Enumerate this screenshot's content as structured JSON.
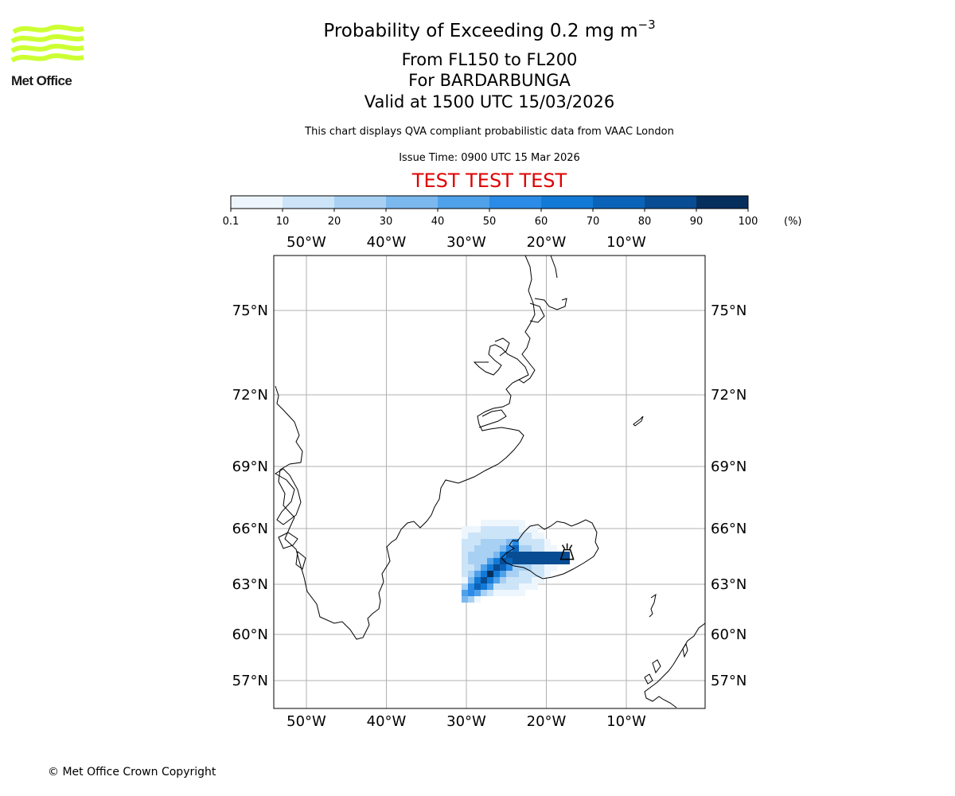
{
  "logo": {
    "text": "Met Office",
    "color": "#ccff33"
  },
  "header": {
    "title_prefix": "Probability of Exceeding 0.2 mg m",
    "title_exponent": "−3",
    "flight_levels": "From FL150 to FL200",
    "volcano": "For BARDARBUNGA",
    "valid_time": "Valid at 1500 UTC 15/03/2026",
    "subtitle": "This chart displays QVA compliant probabilistic data from VAAC London",
    "issue_time": "Issue Time: 0900 UTC 15 Mar 2026",
    "test_banner": "TEST TEST TEST",
    "test_color": "#e00000"
  },
  "colorbar": {
    "unit_label": "(%)",
    "tick_labels": [
      "0.1",
      "10",
      "20",
      "30",
      "40",
      "50",
      "60",
      "70",
      "80",
      "90",
      "100"
    ],
    "colors": [
      "#eef6fd",
      "#cce4f8",
      "#a8d0f3",
      "#7bb8ee",
      "#4fa1ea",
      "#2b8be6",
      "#127ad6",
      "#0a63b8",
      "#084c94",
      "#062f5e"
    ]
  },
  "map": {
    "lon_labels": [
      "50°W",
      "40°W",
      "30°W",
      "20°W",
      "10°W"
    ],
    "lon_values": [
      -50,
      -40,
      -30,
      -20,
      -10
    ],
    "lat_labels": [
      "75°N",
      "72°N",
      "69°N",
      "66°N",
      "63°N",
      "60°N",
      "57°N"
    ],
    "lat_values": [
      75,
      72,
      69,
      66,
      63,
      60,
      57
    ],
    "volcano_name": "BARDARBUNGA",
    "volcano_lon": -17.5,
    "volcano_lat": 64.6
  },
  "footer": {
    "copyright": "© Met Office Crown Copyright"
  }
}
